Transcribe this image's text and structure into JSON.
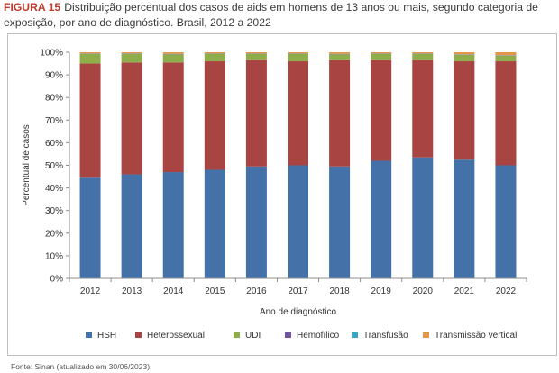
{
  "figure": {
    "label": "FIGURA 15",
    "title": "Distribuição percentual dos casos de aids em homens de 13 anos ou mais, segundo categoria de exposição, por ano de diagnóstico. Brasil, 2012 a 2022",
    "source": "Fonte: Sinan (atualizado em 30/06/2023).",
    "label_color": "#c0392b"
  },
  "chart_data": {
    "type": "bar",
    "stacked": true,
    "categories": [
      "2012",
      "2013",
      "2014",
      "2015",
      "2016",
      "2017",
      "2018",
      "2019",
      "2020",
      "2021",
      "2022"
    ],
    "series": [
      {
        "name": "HSH",
        "color": "#4472a8",
        "values": [
          44.5,
          46,
          47,
          48,
          49.5,
          50,
          49.5,
          52,
          53.5,
          52.5,
          50
        ]
      },
      {
        "name": "Heterossexual",
        "color": "#a84442",
        "values": [
          50.5,
          49.5,
          48.5,
          48,
          47,
          46,
          47,
          44.5,
          43,
          43.5,
          46
        ]
      },
      {
        "name": "UDI",
        "color": "#8fad4a",
        "values": [
          4.3,
          3.8,
          3.6,
          3.2,
          2.7,
          3.2,
          2.6,
          2.7,
          2.7,
          2.9,
          2.5
        ]
      },
      {
        "name": "Hemofílico",
        "color": "#7054a0",
        "values": [
          0.1,
          0.1,
          0.1,
          0.1,
          0.1,
          0.1,
          0.1,
          0.1,
          0.1,
          0.1,
          0.1
        ]
      },
      {
        "name": "Transfusão",
        "color": "#3aa6c1",
        "values": [
          0.1,
          0.1,
          0.1,
          0.1,
          0.1,
          0.1,
          0.1,
          0.1,
          0.1,
          0.1,
          0.1
        ]
      },
      {
        "name": "Transmissão vertical",
        "color": "#e49646",
        "values": [
          0.5,
          0.5,
          0.7,
          0.6,
          0.6,
          0.6,
          0.7,
          0.6,
          0.6,
          0.9,
          1.3
        ]
      }
    ],
    "xlabel": "Ano de diagnóstico",
    "ylabel": "Percentual de casos",
    "ylim": [
      0,
      100
    ],
    "yticks": [
      "0%",
      "10%",
      "20%",
      "30%",
      "40%",
      "50%",
      "60%",
      "70%",
      "80%",
      "90%",
      "100%"
    ],
    "grid": false,
    "legend_position": "bottom"
  }
}
